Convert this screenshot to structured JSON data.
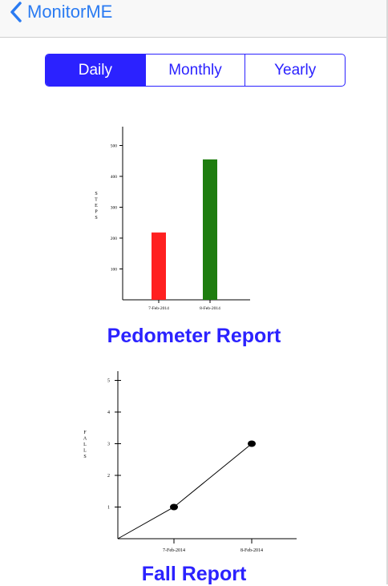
{
  "nav": {
    "back_label": "MonitorME"
  },
  "segments": [
    {
      "label": "Daily",
      "active": true
    },
    {
      "label": "Monthly",
      "active": false
    },
    {
      "label": "Yearly",
      "active": false
    }
  ],
  "pedometer": {
    "title": "Pedometer Report",
    "chart_data": {
      "type": "bar",
      "categories": [
        "7-Feb-2014",
        "8-Feb-2014"
      ],
      "values": [
        218,
        455
      ],
      "colors": [
        "#ff2020",
        "#1e7d0f"
      ],
      "ylabel": "STEPS",
      "yticks": [
        100,
        200,
        300,
        400,
        500
      ],
      "ylim": [
        0,
        560
      ]
    }
  },
  "fall": {
    "title": "Fall Report",
    "chart_data": {
      "type": "line",
      "x": [
        "7-Feb-2014",
        "8-Feb-2014"
      ],
      "values": [
        1,
        3
      ],
      "ylabel": "FALLS",
      "yticks": [
        1,
        2,
        3,
        4,
        5
      ],
      "ylim": [
        0,
        5.2
      ],
      "origin_included": true
    }
  }
}
